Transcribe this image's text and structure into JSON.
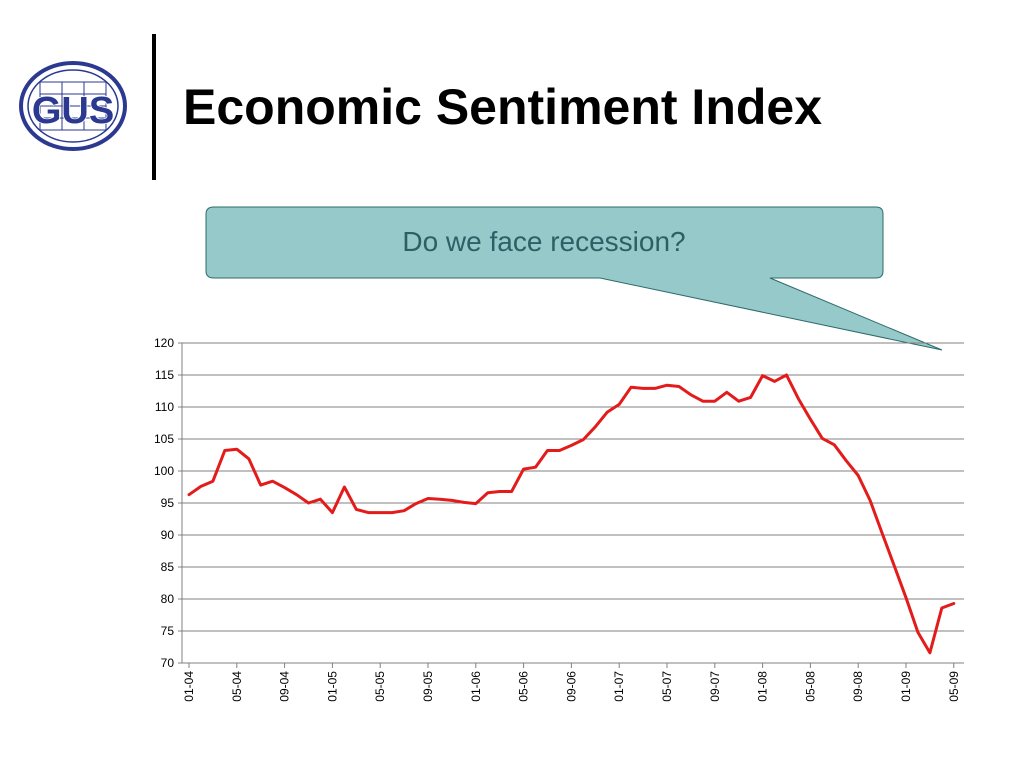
{
  "slide": {
    "title": "Economic Sentiment Index",
    "logo_text": "GUS",
    "callout_text": "Do we face recession?"
  },
  "colors": {
    "line": "#e31b1b",
    "callout_fill": "#96c9c9",
    "callout_stroke": "#2e6b6b",
    "gridline": "#808080",
    "logo_blue": "#2b3990"
  },
  "chart_data": {
    "type": "line",
    "title": "",
    "xlabel": "",
    "ylabel": "",
    "ylim": [
      70,
      120
    ],
    "yticks": [
      70,
      75,
      80,
      85,
      90,
      95,
      100,
      105,
      110,
      115,
      120
    ],
    "grid": true,
    "legend": "none",
    "x_tick_labels": [
      "01-04",
      "05-04",
      "09-04",
      "01-05",
      "05-05",
      "09-05",
      "01-06",
      "05-06",
      "09-06",
      "01-07",
      "05-07",
      "09-07",
      "01-08",
      "05-08",
      "09-08",
      "01-09",
      "05-09"
    ],
    "series": [
      {
        "values": [
          96.3,
          97.6,
          98.4,
          103.2,
          103.4,
          101.9,
          97.8,
          98.4,
          97.4,
          96.3,
          95.0,
          95.6,
          93.5,
          97.5,
          94.0,
          93.5,
          93.5,
          93.5,
          93.8,
          94.9,
          95.7,
          95.6,
          95.4,
          95.1,
          94.9,
          96.6,
          96.8,
          96.8,
          100.3,
          100.6,
          103.2,
          103.2,
          104.0,
          104.9,
          106.9,
          109.2,
          110.4,
          113.1,
          112.9,
          112.9,
          113.4,
          113.2,
          111.9,
          110.9,
          110.9,
          112.3,
          110.9,
          111.5,
          114.9,
          114.0,
          115.0,
          111.3,
          108.1,
          105.1,
          104.1,
          101.6,
          99.3,
          95.4,
          90.3,
          85.3,
          80.2,
          74.8,
          71.6,
          78.6,
          79.3
        ]
      }
    ]
  }
}
